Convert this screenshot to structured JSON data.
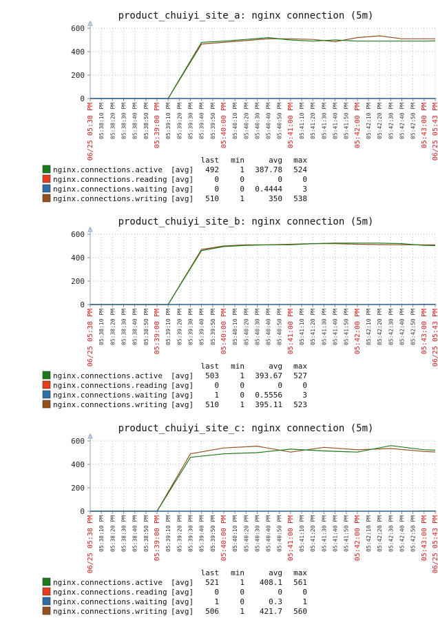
{
  "colors": {
    "active": "#1a7a1a",
    "reading": "#e83c1e",
    "waiting": "#2e6ea6",
    "writing": "#96501e",
    "red_tick": "#cc2222",
    "axis": "#888888",
    "grid": "#bbbbbb"
  },
  "x_tick_labels": [
    "06/25 05:38 PM",
    "05:38:10 PM",
    "05:38:20 PM",
    "05:38:30 PM",
    "05:38:40 PM",
    "05:38:50 PM",
    "05:39:00 PM",
    "05:39:10 PM",
    "05:39:20 PM",
    "05:39:30 PM",
    "05:39:40 PM",
    "05:39:50 PM",
    "05:40:00 PM",
    "05:40:10 PM",
    "05:40:20 PM",
    "05:40:30 PM",
    "05:40:40 PM",
    "05:40:50 PM",
    "05:41:00 PM",
    "05:41:10 PM",
    "05:41:20 PM",
    "05:41:30 PM",
    "05:41:40 PM",
    "05:41:50 PM",
    "05:42:00 PM",
    "05:42:10 PM",
    "05:42:20 PM",
    "05:42:30 PM",
    "05:42:40 PM",
    "05:42:50 PM",
    "05:43:00 PM",
    "06/25 05:43 PM"
  ],
  "legend_headers": {
    "last": "last",
    "min": "min",
    "avg": "avg",
    "max": "max"
  },
  "chart_data": [
    {
      "type": "line",
      "title": "product_chuiyi_site_a: nginx connection (5m)",
      "ylim": [
        0,
        600
      ],
      "yticks": [
        0,
        200,
        400,
        600
      ],
      "grid": true,
      "x": [
        "05:38:00",
        "05:38:10",
        "05:38:20",
        "05:38:30",
        "05:38:40",
        "05:38:50",
        "05:39:00",
        "05:39:10",
        "05:39:20",
        "05:39:30",
        "05:39:40",
        "05:39:50",
        "05:40:00",
        "05:40:10",
        "05:40:20",
        "05:40:30",
        "05:40:40",
        "05:40:50",
        "05:41:00",
        "05:41:10",
        "05:41:20",
        "05:41:30",
        "05:41:40",
        "05:41:50",
        "05:42:00",
        "05:42:10",
        "05:42:20",
        "05:42:30",
        "05:42:40",
        "05:42:50",
        "05:43:00",
        "05:43:10"
      ],
      "series": [
        {
          "name": "nginx.connections.active",
          "agg": "[avg]",
          "color_key": "active",
          "values": [
            0,
            0,
            0,
            0,
            0,
            0,
            0,
            0,
            null,
            null,
            480,
            null,
            490,
            null,
            505,
            null,
            520,
            null,
            500,
            null,
            490,
            null,
            500,
            null,
            490,
            null,
            490,
            null,
            490,
            null,
            490,
            492
          ],
          "last": "492",
          "min": "1",
          "avg": "387.78",
          "max": "524"
        },
        {
          "name": "nginx.connections.reading",
          "agg": "[avg]",
          "color_key": "reading",
          "values": [
            0,
            0,
            0,
            0,
            0,
            0,
            0,
            0,
            0,
            0,
            0,
            0,
            0,
            0,
            0,
            0,
            0,
            0,
            0,
            0,
            0,
            0,
            0,
            0,
            0,
            0,
            0,
            0,
            0,
            0,
            0,
            0
          ],
          "last": "0",
          "min": "0",
          "avg": "0",
          "max": "0"
        },
        {
          "name": "nginx.connections.waiting",
          "agg": "[avg]",
          "color_key": "waiting",
          "values": [
            0,
            0,
            0,
            0,
            0,
            0,
            0,
            0,
            0,
            0,
            0,
            0,
            0,
            0,
            0,
            0,
            0,
            0,
            0,
            0,
            0,
            0,
            0,
            0,
            0,
            0,
            0,
            0,
            0,
            0,
            0,
            0
          ],
          "last": "0",
          "min": "0",
          "avg": "0.4444",
          "max": "3"
        },
        {
          "name": "nginx.connections.writing",
          "agg": "[avg]",
          "color_key": "writing",
          "values": [
            0,
            0,
            0,
            0,
            0,
            0,
            0,
            0,
            null,
            null,
            465,
            null,
            480,
            null,
            495,
            null,
            510,
            null,
            510,
            null,
            505,
            null,
            485,
            null,
            520,
            null,
            535,
            null,
            510,
            null,
            510,
            510
          ],
          "last": "510",
          "min": "1",
          "avg": "350",
          "max": "538"
        }
      ]
    },
    {
      "type": "line",
      "title": "product_chuiyi_site_b: nginx connection (5m)",
      "ylim": [
        0,
        600
      ],
      "yticks": [
        0,
        200,
        400,
        600
      ],
      "grid": true,
      "x": [
        "05:38:00",
        "05:38:10",
        "05:38:20",
        "05:38:30",
        "05:38:40",
        "05:38:50",
        "05:39:00",
        "05:39:10",
        "05:39:20",
        "05:39:30",
        "05:39:40",
        "05:39:50",
        "05:40:00",
        "05:40:10",
        "05:40:20",
        "05:40:30",
        "05:40:40",
        "05:40:50",
        "05:41:00",
        "05:41:10",
        "05:41:20",
        "05:41:30",
        "05:41:40",
        "05:41:50",
        "05:42:00",
        "05:42:10",
        "05:42:20",
        "05:42:30",
        "05:42:40",
        "05:42:50",
        "05:43:00",
        "05:43:10"
      ],
      "series": [
        {
          "name": "nginx.connections.active",
          "agg": "[avg]",
          "color_key": "active",
          "values": [
            0,
            0,
            0,
            0,
            0,
            0,
            0,
            0,
            null,
            null,
            460,
            null,
            495,
            null,
            505,
            null,
            510,
            null,
            510,
            null,
            520,
            null,
            525,
            null,
            525,
            null,
            525,
            null,
            520,
            null,
            505,
            503
          ],
          "last": "503",
          "min": "1",
          "avg": "393.67",
          "max": "527"
        },
        {
          "name": "nginx.connections.reading",
          "agg": "[avg]",
          "color_key": "reading",
          "values": [
            0,
            0,
            0,
            0,
            0,
            0,
            0,
            0,
            0,
            0,
            0,
            0,
            0,
            0,
            0,
            0,
            0,
            0,
            0,
            0,
            0,
            0,
            0,
            0,
            0,
            0,
            0,
            0,
            0,
            0,
            0,
            0
          ],
          "last": "0",
          "min": "0",
          "avg": "0",
          "max": "0"
        },
        {
          "name": "nginx.connections.waiting",
          "agg": "[avg]",
          "color_key": "waiting",
          "values": [
            0,
            0,
            0,
            0,
            0,
            0,
            0,
            0,
            0,
            0,
            0,
            0,
            0,
            0,
            0,
            0,
            0,
            0,
            0,
            0,
            0,
            0,
            0,
            0,
            0,
            0,
            0,
            0,
            0,
            0,
            1,
            1
          ],
          "last": "1",
          "min": "0",
          "avg": "0.5556",
          "max": "3"
        },
        {
          "name": "nginx.connections.writing",
          "agg": "[avg]",
          "color_key": "writing",
          "values": [
            0,
            0,
            0,
            0,
            0,
            0,
            0,
            0,
            null,
            null,
            470,
            null,
            500,
            null,
            510,
            null,
            510,
            null,
            515,
            null,
            520,
            null,
            520,
            null,
            515,
            null,
            512,
            null,
            510,
            null,
            510,
            510
          ],
          "last": "510",
          "min": "1",
          "avg": "395.11",
          "max": "523"
        }
      ]
    },
    {
      "type": "line",
      "title": "product_chuiyi_site_c: nginx connection (5m)",
      "ylim": [
        0,
        600
      ],
      "yticks": [
        0,
        200,
        400,
        600
      ],
      "grid": true,
      "x": [
        "05:38:00",
        "05:38:10",
        "05:38:20",
        "05:38:30",
        "05:38:40",
        "05:38:50",
        "05:39:00",
        "05:39:10",
        "05:39:20",
        "05:39:30",
        "05:39:40",
        "05:39:50",
        "05:40:00",
        "05:40:10",
        "05:40:20",
        "05:40:30",
        "05:40:40",
        "05:40:50",
        "05:41:00",
        "05:41:10",
        "05:41:20",
        "05:41:30",
        "05:41:40",
        "05:41:50",
        "05:42:00",
        "05:42:10",
        "05:42:20",
        "05:42:30",
        "05:42:40",
        "05:42:50",
        "05:43:00",
        "05:43:10"
      ],
      "series": [
        {
          "name": "nginx.connections.active",
          "agg": "[avg]",
          "color_key": "active",
          "values": [
            0,
            0,
            0,
            0,
            0,
            0,
            0,
            null,
            null,
            460,
            null,
            null,
            490,
            null,
            null,
            500,
            null,
            null,
            530,
            null,
            null,
            515,
            null,
            null,
            505,
            null,
            null,
            560,
            null,
            null,
            525,
            521
          ],
          "last": "521",
          "min": "1",
          "avg": "408.1",
          "max": "561"
        },
        {
          "name": "nginx.connections.reading",
          "agg": "[avg]",
          "color_key": "reading",
          "values": [
            0,
            0,
            0,
            0,
            0,
            0,
            0,
            0,
            0,
            0,
            0,
            0,
            0,
            0,
            0,
            0,
            0,
            0,
            0,
            0,
            0,
            0,
            0,
            0,
            0,
            0,
            0,
            0,
            0,
            0,
            0,
            0
          ],
          "last": "0",
          "min": "0",
          "avg": "0",
          "max": "0"
        },
        {
          "name": "nginx.connections.waiting",
          "agg": "[avg]",
          "color_key": "waiting",
          "values": [
            0,
            0,
            0,
            0,
            0,
            0,
            0,
            0,
            0,
            0,
            0,
            0,
            0,
            0,
            0,
            0,
            0,
            0,
            0,
            0,
            0,
            0,
            0,
            0,
            0,
            0,
            0,
            0,
            0,
            0,
            1,
            1
          ],
          "last": "1",
          "min": "0",
          "avg": "0.3",
          "max": "1"
        },
        {
          "name": "nginx.connections.writing",
          "agg": "[avg]",
          "color_key": "writing",
          "values": [
            0,
            0,
            0,
            0,
            0,
            0,
            0,
            null,
            null,
            490,
            null,
            null,
            540,
            null,
            null,
            555,
            null,
            null,
            505,
            null,
            null,
            545,
            null,
            null,
            525,
            null,
            null,
            535,
            null,
            null,
            510,
            506
          ],
          "last": "506",
          "min": "1",
          "avg": "421.7",
          "max": "560"
        }
      ]
    }
  ]
}
